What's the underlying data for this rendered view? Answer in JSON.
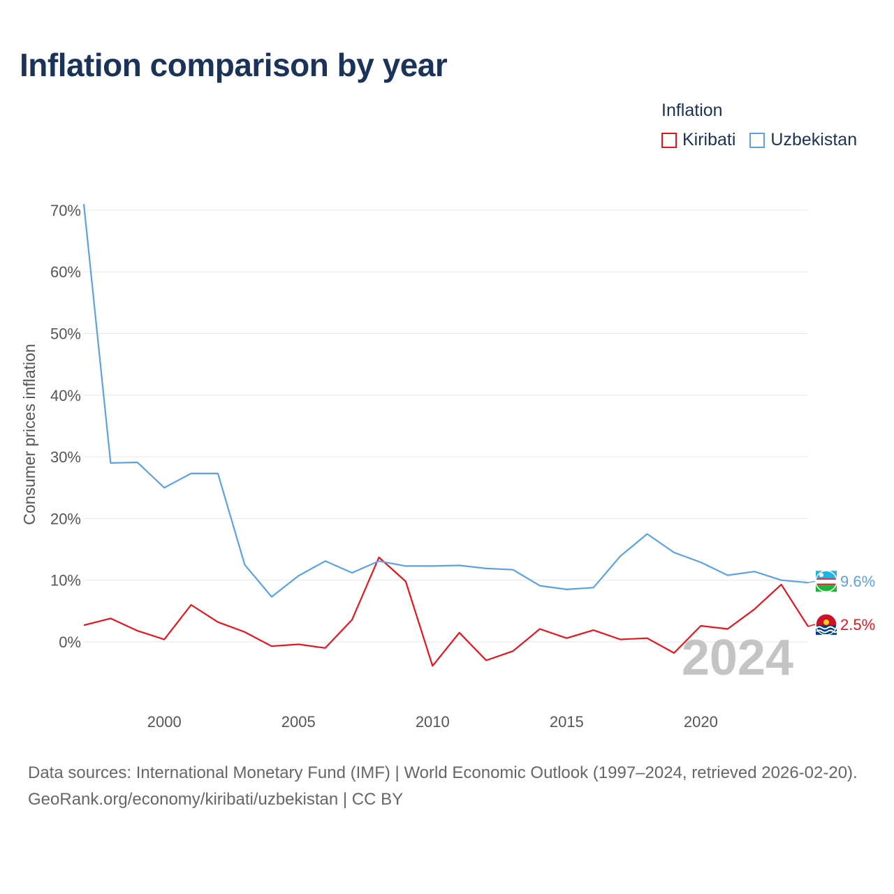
{
  "title": "Inflation comparison by year",
  "legend": {
    "title": "Inflation",
    "items": [
      {
        "label": "Kiribati",
        "color": "#e8141c"
      },
      {
        "label": "Uzbekistan",
        "color": "#5aa2e3"
      }
    ]
  },
  "watermark_year": "2024",
  "footer": {
    "sources": "Data sources: International Monetary Fund (IMF) | World Economic Outlook (1997–2024, retrieved 2026-02-20).",
    "link": "GeoRank.org/economy/kiribati/uzbekistan | CC BY"
  },
  "chart_data": {
    "type": "line",
    "title": "Inflation comparison by year",
    "xlabel": "",
    "ylabel": "Consumer prices inflation",
    "xlim": [
      1997,
      2024
    ],
    "ylim": [
      -10,
      71
    ],
    "grid": true,
    "legend_position": "top-right",
    "x": [
      1997,
      1998,
      1999,
      2000,
      2001,
      2002,
      2003,
      2004,
      2005,
      2006,
      2007,
      2008,
      2009,
      2010,
      2011,
      2012,
      2013,
      2014,
      2015,
      2016,
      2017,
      2018,
      2019,
      2020,
      2021,
      2022,
      2023,
      2024
    ],
    "x_ticks": [
      2000,
      2005,
      2010,
      2015,
      2020
    ],
    "y_ticks": [
      0,
      10,
      20,
      30,
      40,
      50,
      60,
      70
    ],
    "y_tick_labels": [
      "0%",
      "10%",
      "20%",
      "30%",
      "40%",
      "50%",
      "60%",
      "70%"
    ],
    "series": [
      {
        "name": "Kiribati",
        "color": "#e8141c",
        "end_label": "2.5%",
        "flag_icon": "kiribati-flag-icon",
        "values": [
          2.7,
          3.8,
          1.8,
          0.4,
          6.0,
          3.2,
          1.6,
          -0.7,
          -0.4,
          -1.0,
          3.6,
          13.7,
          9.8,
          -3.9,
          1.5,
          -3.0,
          -1.5,
          2.1,
          0.6,
          1.9,
          0.4,
          0.6,
          -1.8,
          2.6,
          2.1,
          5.3,
          9.3,
          2.5
        ]
      },
      {
        "name": "Uzbekistan",
        "color": "#5aa2e3",
        "end_label": "9.6%",
        "flag_icon": "uzbekistan-flag-icon",
        "values": [
          71.0,
          29.0,
          29.1,
          25.0,
          27.3,
          27.3,
          12.5,
          7.3,
          10.7,
          13.1,
          11.2,
          13.1,
          12.3,
          12.3,
          12.4,
          11.9,
          11.7,
          9.1,
          8.5,
          8.8,
          13.9,
          17.5,
          14.5,
          12.9,
          10.8,
          11.4,
          10.0,
          9.6
        ]
      }
    ]
  }
}
